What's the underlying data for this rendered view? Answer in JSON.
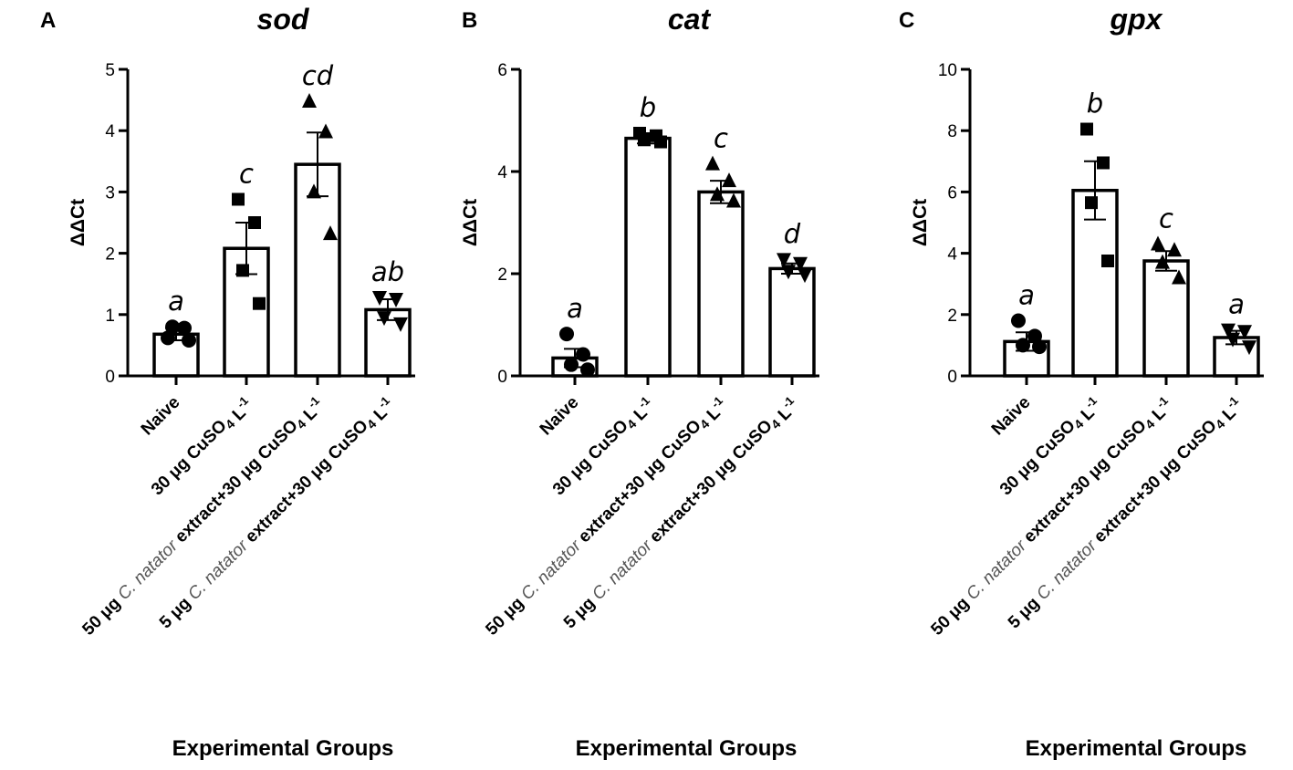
{
  "xlabel": "Experimental Groups",
  "ylabel": "ΔΔCt",
  "categories": [
    {
      "plain": "Naive"
    },
    {
      "parts": [
        {
          "t": "30 μg CuSO",
          "i": false
        },
        {
          "sub": "4"
        },
        {
          "t": " L",
          "i": false
        },
        {
          "sup": "-1"
        }
      ]
    },
    {
      "parts": [
        {
          "t": "50 μg ",
          "i": false
        },
        {
          "t": "C. natator",
          "i": true
        },
        {
          "t": " extract+30 μg CuSO",
          "i": false
        },
        {
          "sub": "4"
        },
        {
          "t": " L",
          "i": false
        },
        {
          "sup": "-1"
        }
      ]
    },
    {
      "parts": [
        {
          "t": "5 μg ",
          "i": false
        },
        {
          "t": "C. natator",
          "i": true
        },
        {
          "t": " extract+30 μg CuSO",
          "i": false
        },
        {
          "sub": "4"
        },
        {
          "t": " L",
          "i": false
        },
        {
          "sup": "-1"
        }
      ]
    }
  ],
  "chart_data": [
    {
      "type": "bar",
      "panel": "A",
      "title": "sod",
      "xlabel": "Experimental Groups",
      "ylabel": "ΔΔCt",
      "ylim": [
        0,
        5
      ],
      "yticks": [
        0,
        1,
        2,
        3,
        4,
        5
      ],
      "categories": [
        "Naive",
        "30 μg CuSO4 L-1",
        "50 μg C. natator extract+30 μg CuSO4 L-1",
        "5 μg C. natator extract+30 μg CuSO4 L-1"
      ],
      "values": [
        0.68,
        2.08,
        3.45,
        1.08
      ],
      "errors": [
        0.1,
        0.42,
        0.52,
        0.17
      ],
      "letters": [
        "a",
        "c",
        "cd",
        "ab"
      ],
      "markers": [
        "circle",
        "square",
        "triangle-up",
        "triangle-down"
      ],
      "points": [
        [
          0.62,
          0.78,
          0.8,
          0.58
        ],
        [
          2.88,
          2.5,
          1.72,
          1.18
        ],
        [
          4.48,
          3.98,
          3.0,
          2.32
        ],
        [
          1.28,
          1.25,
          0.95,
          0.85
        ]
      ]
    },
    {
      "type": "bar",
      "panel": "B",
      "title": "cat",
      "xlabel": "Experimental Groups",
      "ylabel": "ΔΔCt",
      "ylim": [
        0,
        6
      ],
      "yticks": [
        0,
        2,
        4,
        6
      ],
      "categories": [
        "Naive",
        "30 μg CuSO4 L-1",
        "50 μg C. natator extract+30 μg CuSO4 L-1",
        "5 μg C. natator extract+30 μg CuSO4 L-1"
      ],
      "values": [
        0.35,
        4.65,
        3.6,
        2.1
      ],
      "errors": [
        0.18,
        0.1,
        0.22,
        0.1
      ],
      "letters": [
        "a",
        "b",
        "c",
        "d"
      ],
      "markers": [
        "circle",
        "square",
        "triangle-up",
        "triangle-down"
      ],
      "points": [
        [
          0.82,
          0.42,
          0.22,
          0.12
        ],
        [
          4.75,
          4.7,
          4.62,
          4.58
        ],
        [
          4.15,
          3.82,
          3.55,
          3.42
        ],
        [
          2.28,
          2.2,
          2.05,
          1.98
        ]
      ]
    },
    {
      "type": "bar",
      "panel": "C",
      "title": "gpx",
      "xlabel": "Experimental Groups",
      "ylabel": "ΔΔCt",
      "ylim": [
        0,
        10
      ],
      "yticks": [
        0,
        2,
        4,
        6,
        8,
        10
      ],
      "categories": [
        "Naive",
        "30 μg CuSO4 L-1",
        "50 μg C. natator extract+30 μg CuSO4 L-1",
        "5 μg C. natator extract+30 μg CuSO4 L-1"
      ],
      "values": [
        1.12,
        6.05,
        3.75,
        1.25
      ],
      "errors": [
        0.3,
        0.95,
        0.32,
        0.22
      ],
      "letters": [
        "a",
        "b",
        "c",
        "a"
      ],
      "markers": [
        "circle",
        "square",
        "triangle-up",
        "triangle-down"
      ],
      "points": [
        [
          1.8,
          1.3,
          1.0,
          0.95
        ],
        [
          8.05,
          6.95,
          5.65,
          3.75
        ],
        [
          4.3,
          4.1,
          3.7,
          3.2
        ],
        [
          1.5,
          1.45,
          1.2,
          0.95
        ]
      ]
    }
  ]
}
